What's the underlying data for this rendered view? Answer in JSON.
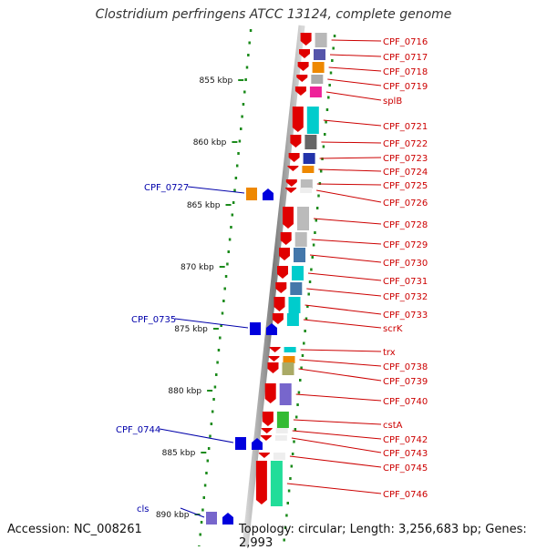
{
  "title": "Clostridium perfringens ATCC 13124, complete genome",
  "accession_line": "Accession: NC_008261",
  "info_line": "Topology: circular; Length: 3,256,683 bp; Genes: 2,993",
  "colors": {
    "backbone": "#8a8a8a",
    "ruler_dot": "#1a8a1a",
    "forward_strand": "#e00000",
    "reverse_strand": "#0000dd",
    "forward_label": "#cc0000",
    "reverse_label": "#0000aa"
  },
  "ruler": {
    "unit": "kbp",
    "ticks": [
      "855 kbp",
      "860 kbp",
      "865 kbp",
      "870 kbp",
      "875 kbp",
      "880 kbp",
      "885 kbp",
      "890 kbp"
    ]
  },
  "genes_forward": [
    "CPF_0716",
    "CPF_0717",
    "CPF_0718",
    "CPF_0719",
    "splB",
    "CPF_0721",
    "CPF_0722",
    "CPF_0723",
    "CPF_0724",
    "CPF_0725",
    "CPF_0726",
    "CPF_0728",
    "CPF_0729",
    "CPF_0730",
    "CPF_0731",
    "CPF_0732",
    "CPF_0733",
    "scrK",
    "trx",
    "CPF_0738",
    "CPF_0739",
    "CPF_0740",
    "cstA",
    "CPF_0742",
    "CPF_0743",
    "CPF_0745",
    "CPF_0746"
  ],
  "genes_reverse": [
    "CPF_0727",
    "CPF_0735",
    "CPF_0744",
    "cls"
  ]
}
